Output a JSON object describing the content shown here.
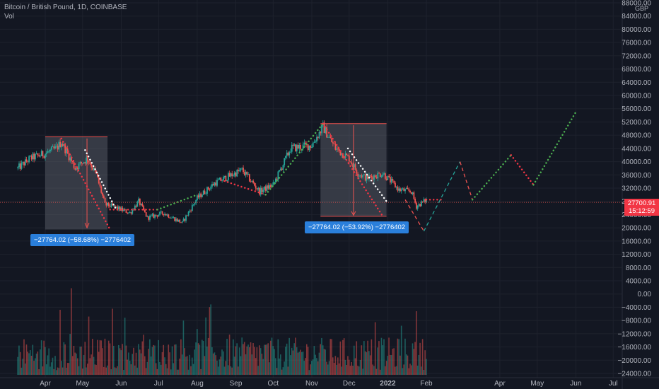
{
  "legend": {
    "title": "Bitcoin / British Pound, 1D, COINBASE",
    "volume": "Vol"
  },
  "currency": "GBP",
  "price_tag": {
    "price": "27700.91",
    "countdown": "15:12:59"
  },
  "measure_labels": [
    "−27764.02 (−58.68%) −2776402",
    "−27764.02 (−53.92%) −2776402"
  ],
  "colors": {
    "background": "#131722",
    "up": "#26a69a",
    "down": "#ef5350",
    "green_dots": "#4caf50",
    "red_dots": "#f23645",
    "box": "rgba(120,123,134,0.35)",
    "label": "#2a7fdb"
  },
  "chart_data": {
    "type": "candlestick",
    "y_ticks": [
      "88000.00",
      "84000.00",
      "80000.00",
      "76000.00",
      "72000.00",
      "68000.00",
      "64000.00",
      "60000.00",
      "56000.00",
      "52000.00",
      "48000.00",
      "44000.00",
      "40000.00",
      "36000.00",
      "32000.00",
      "28000.00",
      "24000.00",
      "20000.00",
      "16000.00",
      "12000.00",
      "8000.00",
      "4000.00",
      "0.00",
      "−4000.00",
      "−8000.00",
      "−12000.00",
      "−16000.00",
      "−20000.00",
      "−24000.00"
    ],
    "x_ticks": [
      {
        "label": "Apr",
        "bold": false
      },
      {
        "label": "May",
        "bold": false
      },
      {
        "label": "Jun",
        "bold": false
      },
      {
        "label": "Jul",
        "bold": false
      },
      {
        "label": "Aug",
        "bold": false
      },
      {
        "label": "Sep",
        "bold": false
      },
      {
        "label": "Oct",
        "bold": false
      },
      {
        "label": "Nov",
        "bold": false
      },
      {
        "label": "Dec",
        "bold": false
      },
      {
        "label": "2022",
        "bold": true
      },
      {
        "label": "Feb",
        "bold": false
      },
      {
        "label": "Apr",
        "bold": false
      },
      {
        "label": "May",
        "bold": false
      },
      {
        "label": "Jun",
        "bold": false
      },
      {
        "label": "Jul",
        "bold": false
      }
    ],
    "price_range": [
      -24000,
      88000
    ],
    "last_price": 27700.91,
    "close_path": [
      [
        "2021-03-10",
        38000
      ],
      [
        "2021-03-20",
        41000
      ],
      [
        "2021-04-01",
        42500
      ],
      [
        "2021-04-10",
        44000
      ],
      [
        "2021-04-14",
        46000
      ],
      [
        "2021-04-25",
        38000
      ],
      [
        "2021-05-05",
        41000
      ],
      [
        "2021-05-12",
        36000
      ],
      [
        "2021-05-19",
        27000
      ],
      [
        "2021-05-25",
        26500
      ],
      [
        "2021-06-08",
        24500
      ],
      [
        "2021-06-15",
        28000
      ],
      [
        "2021-06-22",
        23000
      ],
      [
        "2021-07-05",
        24500
      ],
      [
        "2021-07-20",
        21500
      ],
      [
        "2021-08-01",
        29000
      ],
      [
        "2021-08-15",
        33500
      ],
      [
        "2021-09-06",
        37500
      ],
      [
        "2021-09-20",
        31000
      ],
      [
        "2021-10-01",
        33000
      ],
      [
        "2021-10-15",
        44000
      ],
      [
        "2021-11-01",
        45000
      ],
      [
        "2021-11-10",
        50500
      ],
      [
        "2021-11-20",
        44000
      ],
      [
        "2021-12-01",
        41000
      ],
      [
        "2021-12-08",
        36500
      ],
      [
        "2021-12-15",
        35000
      ],
      [
        "2021-12-28",
        36500
      ],
      [
        "2022-01-10",
        31500
      ],
      [
        "2022-01-20",
        31000
      ],
      [
        "2022-01-24",
        26500
      ],
      [
        "2022-02-01",
        28500
      ]
    ],
    "volume_max": 20000,
    "projection": {
      "red_dotted": [
        [
          "2022-02-01",
          28500
        ],
        [
          "2022-02-13",
          28500
        ]
      ],
      "dashed_down": [
        [
          "2022-01-15",
          28500
        ],
        [
          "2022-01-30",
          19000
        ]
      ],
      "dashed_up": [
        [
          "2022-01-30",
          19000
        ],
        [
          "2022-02-28",
          40000
        ],
        [
          "2022-03-10",
          28500
        ]
      ],
      "green_dotted_1": [
        [
          "2022-03-10",
          28500
        ],
        [
          "2022-04-10",
          42000
        ]
      ],
      "red_dotted_2": [
        [
          "2022-04-10",
          42000
        ],
        [
          "2022-04-28",
          33000
        ]
      ],
      "green_dotted_2": [
        [
          "2022-04-28",
          33000
        ],
        [
          "2022-06-01",
          55000
        ]
      ]
    }
  }
}
